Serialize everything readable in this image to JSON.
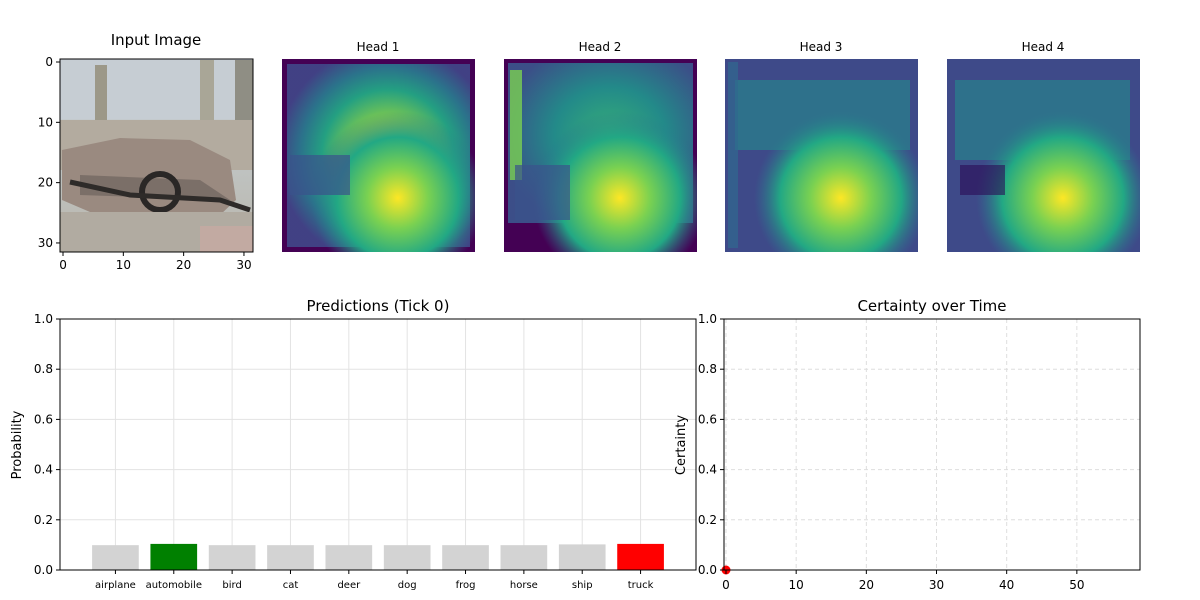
{
  "image_panel": {
    "title": "Input Image",
    "x_ticks": [
      "0",
      "10",
      "20",
      "30"
    ],
    "y_ticks": [
      "0",
      "10",
      "20",
      "30"
    ]
  },
  "heads": [
    {
      "title": "Head 1"
    },
    {
      "title": "Head 2"
    },
    {
      "title": "Head 3"
    },
    {
      "title": "Head 4"
    }
  ],
  "chart_data": [
    {
      "type": "bar",
      "title": "Predictions (Tick 0)",
      "xlabel": "",
      "ylabel": "Probability",
      "ylim": [
        0,
        1
      ],
      "y_ticks": [
        "0.0",
        "0.2",
        "0.4",
        "0.6",
        "0.8",
        "1.0"
      ],
      "categories": [
        "airplane",
        "automobile",
        "bird",
        "cat",
        "deer",
        "dog",
        "frog",
        "horse",
        "ship",
        "truck"
      ],
      "values": [
        0.099,
        0.104,
        0.099,
        0.099,
        0.099,
        0.099,
        0.099,
        0.099,
        0.102,
        0.104
      ],
      "bar_colors": [
        "#d3d3d3",
        "#008000",
        "#d3d3d3",
        "#d3d3d3",
        "#d3d3d3",
        "#d3d3d3",
        "#d3d3d3",
        "#d3d3d3",
        "#d3d3d3",
        "#ff0000"
      ],
      "grid": true
    },
    {
      "type": "line",
      "title": "Certainty over Time",
      "xlabel": "",
      "ylabel": "Certainty",
      "xlim": [
        0,
        59
      ],
      "ylim": [
        0,
        1
      ],
      "x_ticks": [
        "0",
        "10",
        "20",
        "30",
        "40",
        "50"
      ],
      "y_ticks": [
        "0.0",
        "0.2",
        "0.4",
        "0.6",
        "0.8",
        "1.0"
      ],
      "series": [
        {
          "x": [
            0
          ],
          "values": [
            0.0
          ],
          "color": "#ff0000"
        }
      ],
      "grid": "dashed"
    }
  ]
}
